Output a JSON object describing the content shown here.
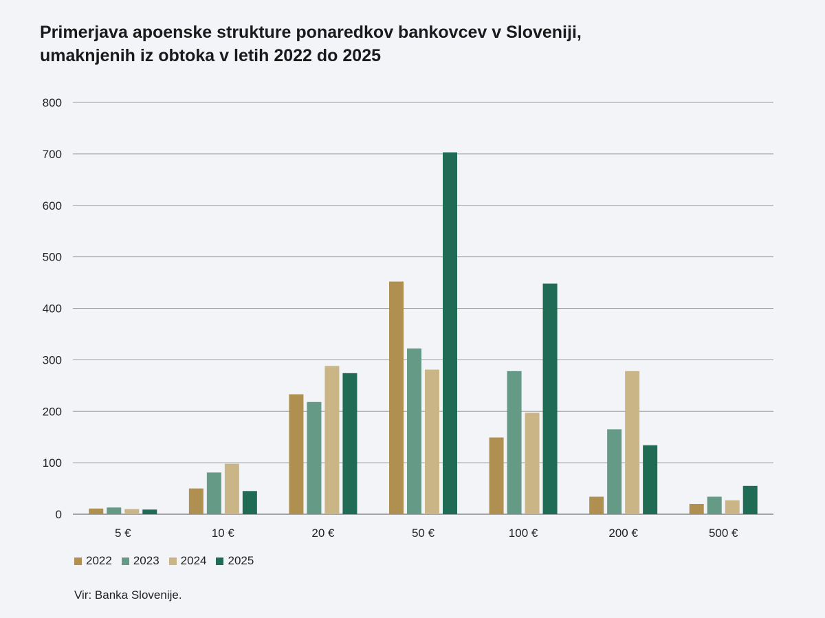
{
  "chart_data": {
    "type": "bar",
    "title_lines": [
      "Primerjava apoenske strukture ponaredkov bankovcev v Sloveniji,",
      "umaknjenih iz obtoka v letih 2022 do 2025"
    ],
    "categories": [
      "5 €",
      "10 €",
      "20 €",
      "50 €",
      "100 €",
      "200 €",
      "500 €"
    ],
    "series": [
      {
        "name": "2022",
        "color": "#b09050",
        "values": [
          11,
          50,
          233,
          452,
          149,
          34,
          20
        ]
      },
      {
        "name": "2023",
        "color": "#649a86",
        "values": [
          13,
          81,
          218,
          322,
          278,
          165,
          34
        ]
      },
      {
        "name": "2024",
        "color": "#c9b585",
        "values": [
          10,
          98,
          288,
          281,
          197,
          278,
          27
        ]
      },
      {
        "name": "2025",
        "color": "#1f6b54",
        "values": [
          9,
          45,
          274,
          703,
          448,
          134,
          55
        ]
      }
    ],
    "yticks": [
      "0",
      "100",
      "200",
      "300",
      "400",
      "500",
      "600",
      "700",
      "800"
    ],
    "ylim": [
      0,
      800
    ],
    "xlabel": "",
    "ylabel": "",
    "grid": true,
    "legend_position": "bottom-left",
    "source": "Vir: Banka Slovenije."
  }
}
